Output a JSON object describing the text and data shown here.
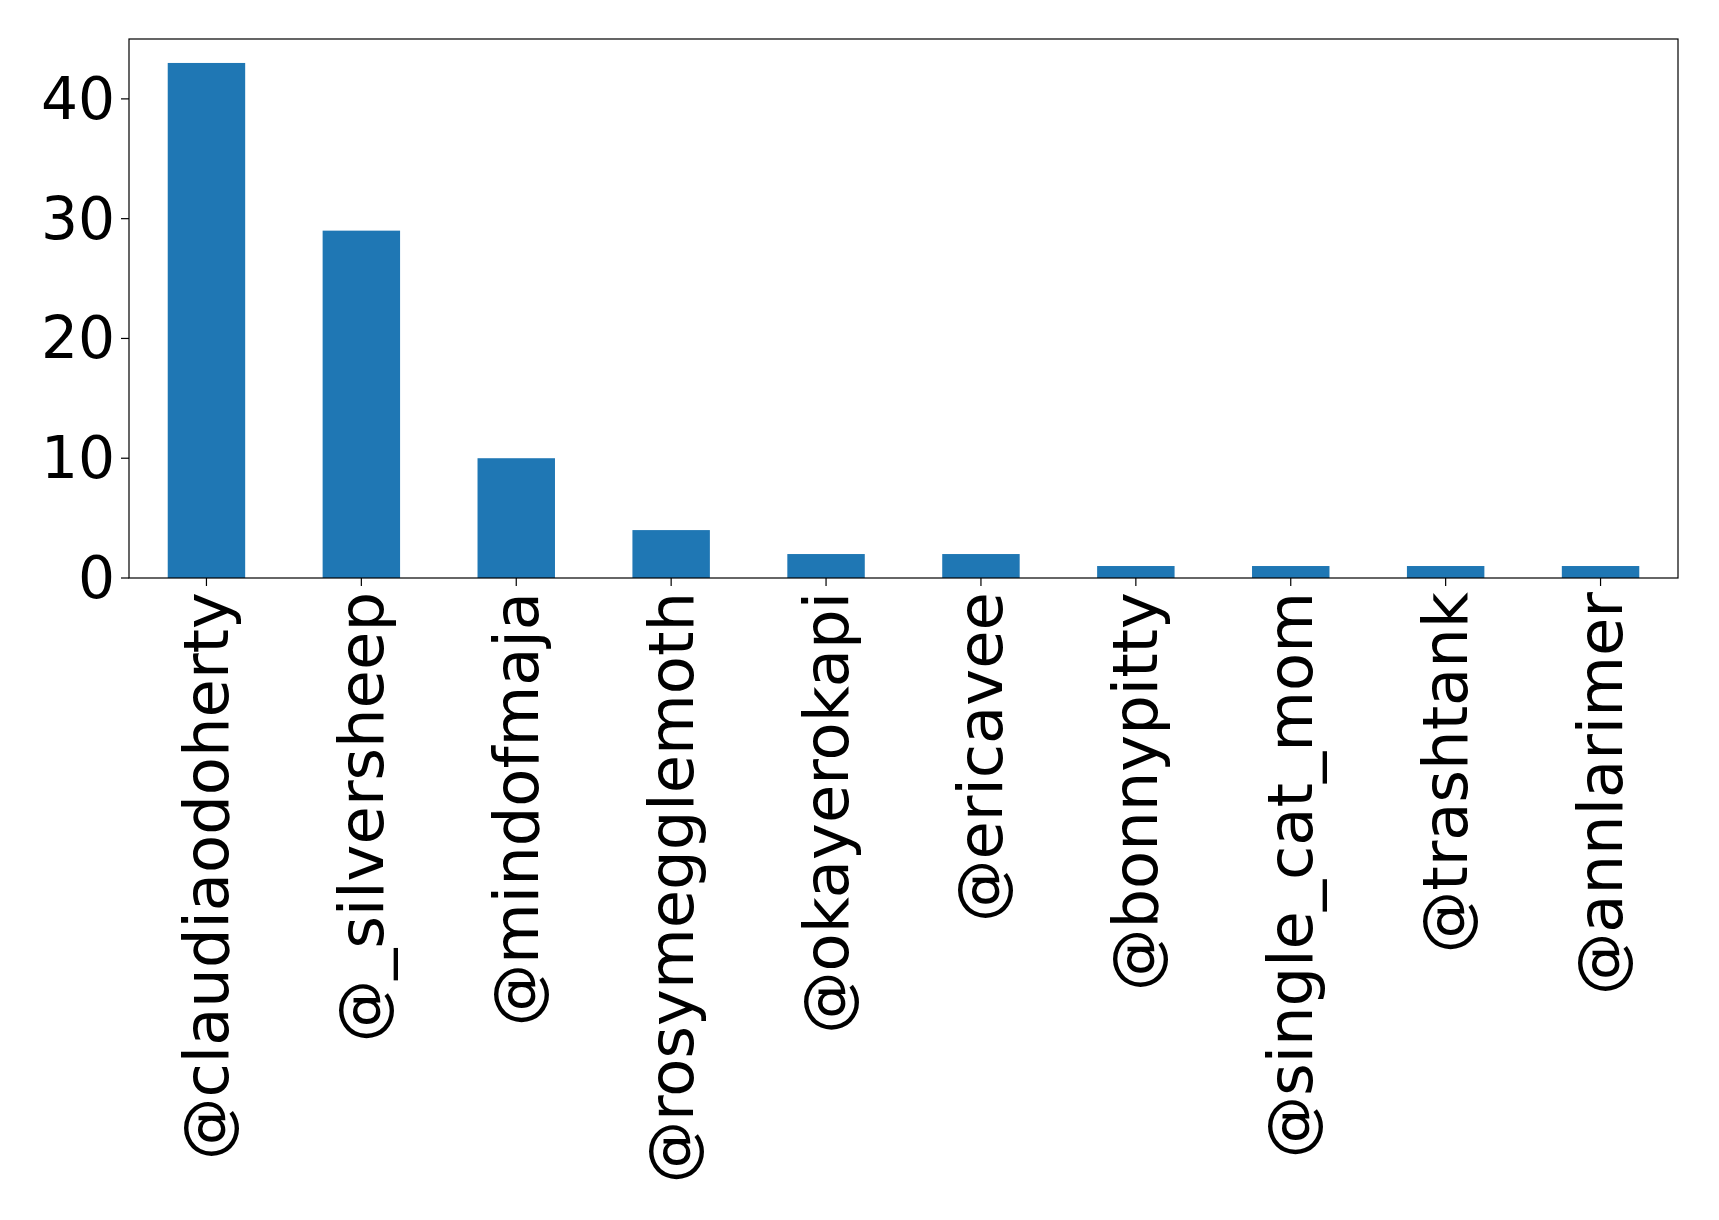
{
  "chart_data": {
    "type": "bar",
    "categories": [
      "@claudiaodoherty",
      "@_silversheep",
      "@mindofmaja",
      "@rosymegglemoth",
      "@okayerokapi",
      "@ericavee",
      "@bonnypitty",
      "@single_cat_mom",
      "@trashtank",
      "@annlarimer"
    ],
    "values": [
      43,
      29,
      10,
      4,
      2,
      2,
      1,
      1,
      1,
      1
    ],
    "color": "#1f77b4",
    "ylim": [
      0,
      45
    ],
    "yticks": [
      0,
      10,
      20,
      30,
      40
    ],
    "grid": false
  }
}
